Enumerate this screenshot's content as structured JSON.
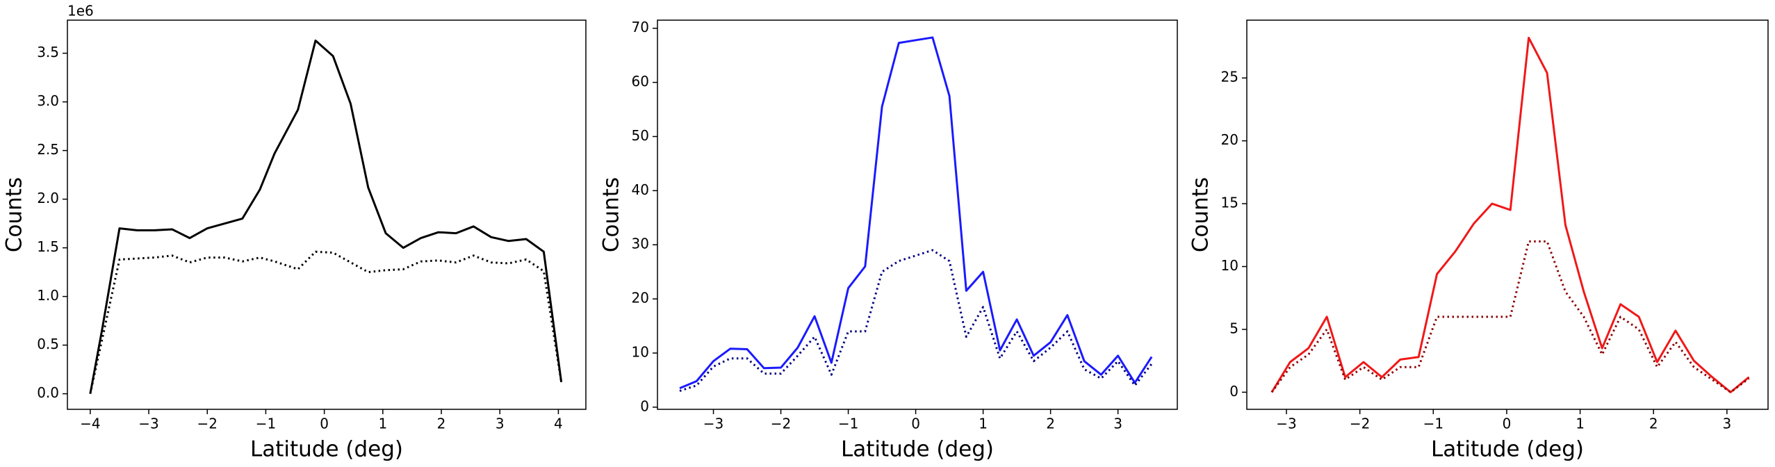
{
  "chart_data": [
    {
      "type": "line",
      "x_label": "Latitude (deg)",
      "y_label": "Counts",
      "offset_text": "1e6",
      "xlim": [
        -4.39,
        4.47
      ],
      "ylim": [
        -0.16,
        3.84
      ],
      "xticks": [
        {
          "value": -4,
          "label": "−4"
        },
        {
          "value": -3,
          "label": "−3"
        },
        {
          "value": -2,
          "label": "−2"
        },
        {
          "value": -1,
          "label": "−1"
        },
        0,
        1,
        2,
        3,
        4
      ],
      "yticks": [
        {
          "value": 0,
          "label": "0.0"
        },
        {
          "value": 0.5,
          "label": "0.5"
        },
        {
          "value": 1,
          "label": "1.0"
        },
        {
          "value": 1.5,
          "label": "1.5"
        },
        {
          "value": 2,
          "label": "2.0"
        },
        {
          "value": 2.5,
          "label": "2.5"
        },
        {
          "value": 3,
          "label": "3.0"
        },
        {
          "value": 3.5,
          "label": "3.5"
        }
      ],
      "x": [
        -4.0,
        -3.8,
        -3.5,
        -3.2,
        -2.9,
        -2.6,
        -2.3,
        -2.0,
        -1.7,
        -1.4,
        -1.1,
        -0.85,
        -0.45,
        -0.15,
        0.15,
        0.45,
        0.75,
        1.05,
        1.35,
        1.65,
        1.95,
        2.25,
        2.55,
        2.85,
        3.15,
        3.45,
        3.75,
        4.05
      ],
      "series": [
        {
          "color": "#000000",
          "linestyle": "solid",
          "values": [
            0,
            0.65,
            1.7,
            1.68,
            1.68,
            1.69,
            1.6,
            1.7,
            1.75,
            1.8,
            2.1,
            2.47,
            2.92,
            3.63,
            3.47,
            2.98,
            2.12,
            1.65,
            1.5,
            1.6,
            1.66,
            1.65,
            1.72,
            1.61,
            1.57,
            1.59,
            1.46,
            0.12
          ]
        },
        {
          "color": "#000000",
          "linestyle": "dotted",
          "values": [
            0,
            0.55,
            1.38,
            1.39,
            1.4,
            1.42,
            1.35,
            1.4,
            1.4,
            1.36,
            1.4,
            1.36,
            1.28,
            1.46,
            1.45,
            1.35,
            1.25,
            1.27,
            1.28,
            1.36,
            1.37,
            1.35,
            1.42,
            1.35,
            1.34,
            1.38,
            1.26,
            0.12
          ]
        }
      ]
    },
    {
      "type": "line",
      "x_label": "Latitude (deg)",
      "y_label": "Counts",
      "xlim": [
        -3.83,
        3.88
      ],
      "ylim": [
        -0.4,
        71.5
      ],
      "xticks": [
        {
          "value": -3,
          "label": "−3"
        },
        {
          "value": -2,
          "label": "−2"
        },
        {
          "value": -1,
          "label": "−1"
        },
        0,
        1,
        2,
        3
      ],
      "yticks": [
        0,
        10,
        20,
        30,
        40,
        50,
        60,
        70
      ],
      "x": [
        -3.5,
        -3.25,
        -3.0,
        -2.75,
        -2.5,
        -2.25,
        -2.0,
        -1.75,
        -1.5,
        -1.25,
        -1.0,
        -0.75,
        -0.5,
        -0.25,
        0,
        0.25,
        0.5,
        0.75,
        1.0,
        1.25,
        1.5,
        1.75,
        2.0,
        2.25,
        2.5,
        2.75,
        3.0,
        3.25,
        3.5
      ],
      "series": [
        {
          "color": "#1a1aff",
          "linestyle": "solid",
          "values": [
            3.5,
            4.8,
            8.5,
            10.8,
            10.7,
            7.2,
            7.3,
            11,
            16.8,
            8.2,
            22,
            26,
            55.5,
            67.3,
            67.8,
            68.3,
            57.5,
            21.5,
            25,
            10.5,
            16.2,
            9.5,
            12,
            17,
            8.5,
            6,
            9.5,
            4.5,
            9.3
          ]
        },
        {
          "color": "#000080",
          "linestyle": "dotted",
          "values": [
            3,
            4,
            7.5,
            9,
            9,
            6.2,
            6.2,
            9.5,
            13,
            6,
            14,
            14,
            25,
            27,
            28,
            29,
            27,
            13,
            18.5,
            9,
            14,
            8.5,
            11,
            14,
            7,
            5.3,
            8.5,
            4,
            8
          ]
        }
      ]
    },
    {
      "type": "line",
      "x_label": "Latitude (deg)",
      "y_label": "Counts",
      "xlim": [
        -3.54,
        3.56
      ],
      "ylim": [
        -1.36,
        29.6
      ],
      "xticks": [
        {
          "value": -3,
          "label": "−3"
        },
        {
          "value": -2,
          "label": "−2"
        },
        {
          "value": -1,
          "label": "−1"
        },
        0,
        1,
        2,
        3
      ],
      "yticks": [
        0,
        5,
        10,
        15,
        20,
        25
      ],
      "x": [
        -3.2,
        -2.95,
        -2.7,
        -2.45,
        -2.2,
        -1.95,
        -1.7,
        -1.45,
        -1.2,
        -0.95,
        -0.7,
        -0.45,
        -0.2,
        0.05,
        0.3,
        0.55,
        0.8,
        1.05,
        1.3,
        1.55,
        1.8,
        2.05,
        2.3,
        2.55,
        2.8,
        3.05,
        3.3
      ],
      "series": [
        {
          "color": "#f01818",
          "linestyle": "solid",
          "values": [
            0,
            2.4,
            3.5,
            6,
            1.2,
            2.4,
            1.2,
            2.6,
            2.8,
            9.4,
            11.2,
            13.4,
            15,
            14.5,
            28.2,
            25.4,
            13.3,
            8,
            3.5,
            7,
            6,
            2.4,
            4.9,
            2.5,
            1.2,
            0,
            1.2
          ]
        },
        {
          "color": "#8b0000",
          "linestyle": "dotted",
          "values": [
            0,
            2,
            3,
            5,
            1,
            2,
            1,
            2,
            2,
            6,
            6,
            6,
            6,
            6,
            12,
            12,
            8,
            6,
            3,
            6,
            5,
            2,
            4,
            2,
            1,
            0,
            1.1
          ]
        }
      ]
    }
  ]
}
